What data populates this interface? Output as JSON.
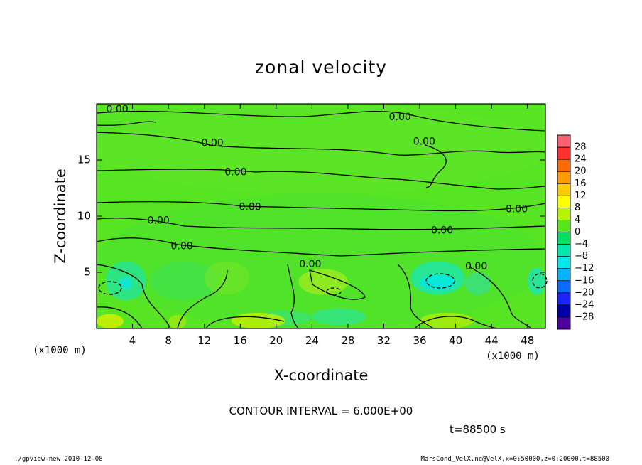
{
  "chart_data": {
    "type": "heatmap",
    "title": "zonal velocity",
    "xlabel": "X-coordinate",
    "ylabel": "Z-coordinate",
    "x_unit_left": "(x1000 m)",
    "x_unit_right": "(x1000 m)",
    "xlim": [
      0,
      50
    ],
    "ylim": [
      0,
      20
    ],
    "x_ticks": [
      4,
      8,
      12,
      16,
      20,
      24,
      28,
      32,
      36,
      40,
      44,
      48
    ],
    "y_ticks": [
      5,
      10,
      15
    ],
    "colorbar": {
      "labels": [
        "28",
        "24",
        "20",
        "16",
        "12",
        "8",
        "4",
        "0",
        "-4",
        "-8",
        "-12",
        "-16",
        "-20",
        "-24",
        "-28"
      ],
      "colors": [
        "#ff6070",
        "#ff3030",
        "#ff6a00",
        "#ff9a00",
        "#ffcc00",
        "#ffff00",
        "#b8f400",
        "#55e61a",
        "#00e060",
        "#00e8b0",
        "#00e8e8",
        "#00b4ff",
        "#0a6cff",
        "#1a24ff",
        "#0000a8",
        "#5000a0"
      ]
    },
    "contour_labels": [
      {
        "text": "0.00",
        "x": 2.3,
        "z": 19.5
      },
      {
        "text": "0.00",
        "x": 33.8,
        "z": 18.8
      },
      {
        "text": "0.00",
        "x": 12.9,
        "z": 16.5
      },
      {
        "text": "0.00",
        "x": 36.5,
        "z": 16.6
      },
      {
        "text": "0.00",
        "x": 15.5,
        "z": 13.9
      },
      {
        "text": "0.00",
        "x": 17.1,
        "z": 10.8
      },
      {
        "text": "0.00",
        "x": 46.8,
        "z": 10.6
      },
      {
        "text": "0.00",
        "x": 6.9,
        "z": 9.6
      },
      {
        "text": "0.00",
        "x": 38.5,
        "z": 8.7
      },
      {
        "text": "0.00",
        "x": 9.5,
        "z": 7.3
      },
      {
        "text": "0.00",
        "x": 23.8,
        "z": 5.7
      },
      {
        "text": "0.00",
        "x": 42.3,
        "z": 5.5
      }
    ],
    "contour_interval_text": "CONTOUR INTERVAL = 6.000E+00",
    "time_label": "t=88500 s"
  },
  "footer": {
    "left": "./gpview-new  2010-12-08",
    "right": "MarsCond_VelX.nc@VelX,x=0:50000,z=0:20000,t=88500"
  }
}
